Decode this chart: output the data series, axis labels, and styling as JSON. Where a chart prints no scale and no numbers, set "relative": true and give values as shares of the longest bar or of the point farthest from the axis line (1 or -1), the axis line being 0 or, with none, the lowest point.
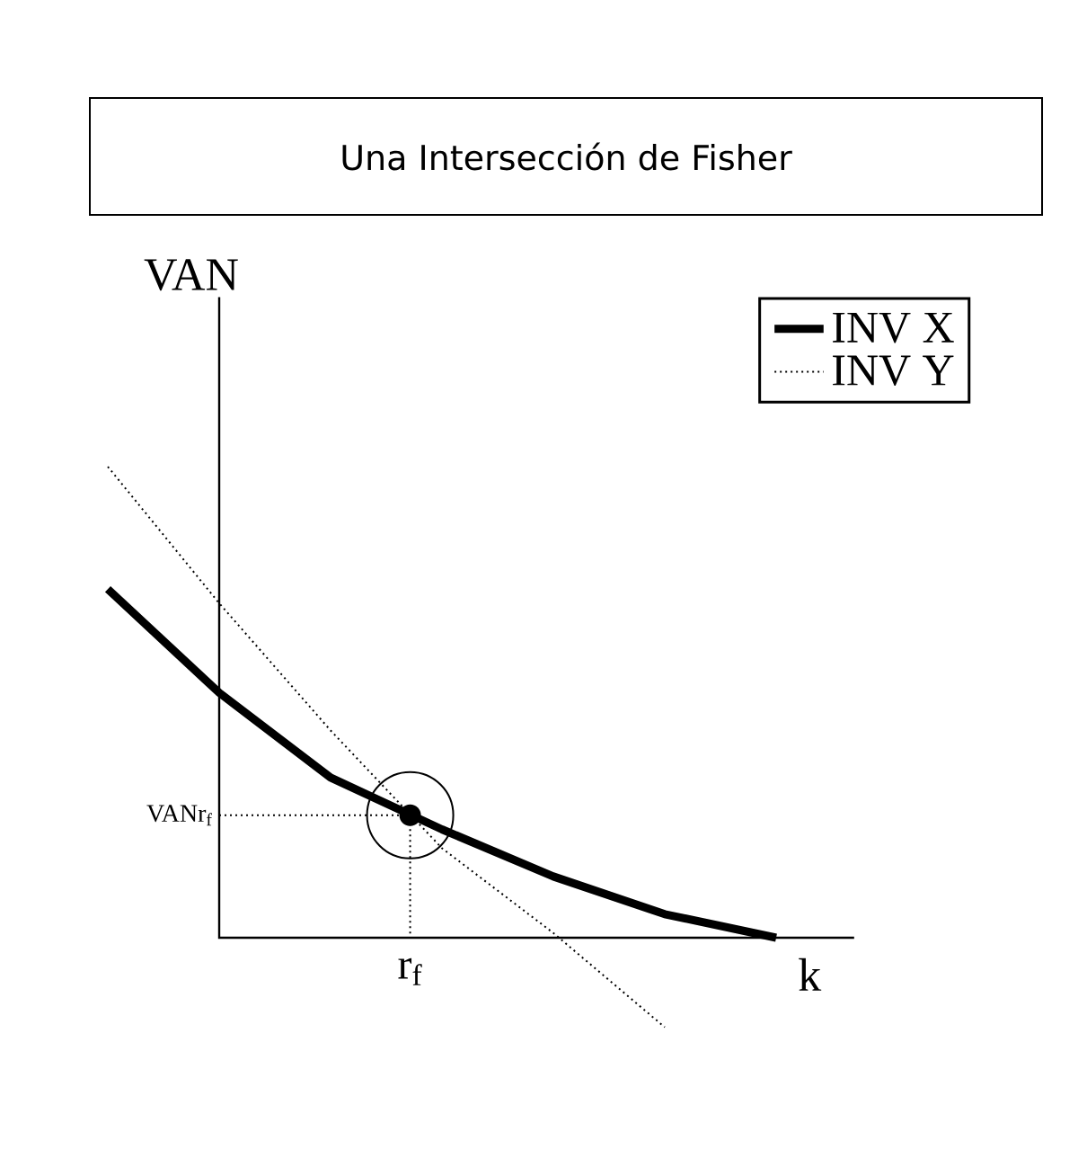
{
  "chart_data": {
    "type": "line",
    "title": "Una Intersección de Fisher",
    "xlabel": "k",
    "ylabel": "VAN",
    "relative": true,
    "legend": "top right",
    "marker": "none",
    "categories": [
      null,
      null,
      null,
      null,
      null,
      null,
      null
    ],
    "series": [
      {
        "name": "INV X",
        "color": "#000000",
        "line_style": "solid",
        "values": [
          0.74,
          0.52,
          0.34,
          0.23,
          0.13,
          0.05,
          0
        ]
      },
      {
        "name": "INV Y",
        "color": "#000000",
        "line_style": "dotted",
        "values": [
          1,
          0.71,
          0.44,
          0.19,
          0.01,
          -0.19,
          null
        ]
      }
    ],
    "ref_lines": [
      {
        "axis": "y",
        "value": 0.26,
        "label": "VANr$_{f}$",
        "line_style": "dotted"
      }
    ],
    "annotations": [
      "r$_{f}$"
    ]
  }
}
